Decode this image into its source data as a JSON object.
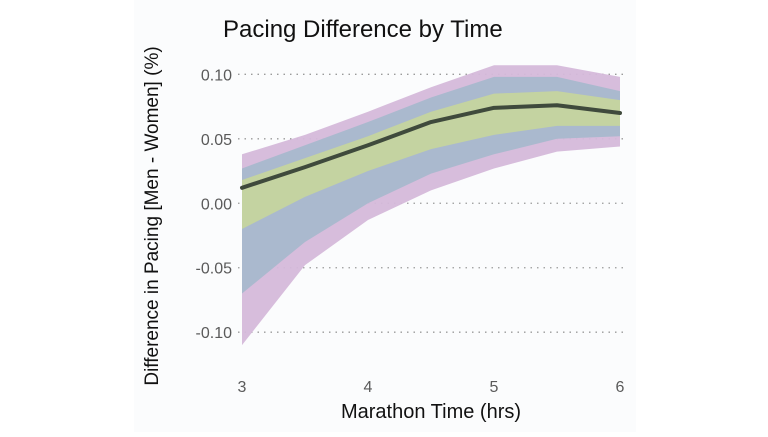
{
  "chart_data": {
    "type": "area",
    "title": "Pacing Difference by Time",
    "xlabel": "Marathon Time (hrs)",
    "ylabel": "Difference in Pacing [Men - Women] (%)",
    "xlim": [
      3,
      6
    ],
    "ylim": [
      -0.12,
      0.108
    ],
    "xticks": [
      3,
      4,
      5,
      6
    ],
    "xtick_labels": [
      "3",
      "4",
      "5",
      "6"
    ],
    "yticks": [
      0.1,
      0.05,
      0.0,
      -0.05,
      -0.1
    ],
    "ytick_labels": [
      "0.10",
      "0.05",
      "0.00",
      "-0.05",
      "-0.10"
    ],
    "grid": "horizontal-dotted",
    "legend": "none",
    "x": [
      3.0,
      3.5,
      4.0,
      4.5,
      5.0,
      5.5,
      6.0
    ],
    "series": [
      {
        "role": "band-outer",
        "color": "#d5b9da",
        "upper": [
          0.038,
          0.053,
          0.071,
          0.09,
          0.107,
          0.107,
          0.098
        ],
        "lower": [
          -0.11,
          -0.048,
          -0.013,
          0.01,
          0.027,
          0.04,
          0.044
        ]
      },
      {
        "role": "band-middle",
        "color": "#a8b8cc",
        "upper": [
          0.027,
          0.045,
          0.063,
          0.082,
          0.098,
          0.098,
          0.087
        ],
        "lower": [
          -0.07,
          -0.03,
          0.0,
          0.023,
          0.038,
          0.05,
          0.052
        ]
      },
      {
        "role": "band-inner",
        "color": "#c5d49e",
        "upper": [
          0.018,
          0.035,
          0.052,
          0.071,
          0.085,
          0.087,
          0.08
        ],
        "lower": [
          -0.02,
          0.005,
          0.025,
          0.042,
          0.053,
          0.06,
          0.06
        ]
      },
      {
        "role": "median",
        "color": "#3f4a3c",
        "values": [
          0.012,
          0.028,
          0.045,
          0.063,
          0.074,
          0.076,
          0.07
        ]
      }
    ]
  }
}
